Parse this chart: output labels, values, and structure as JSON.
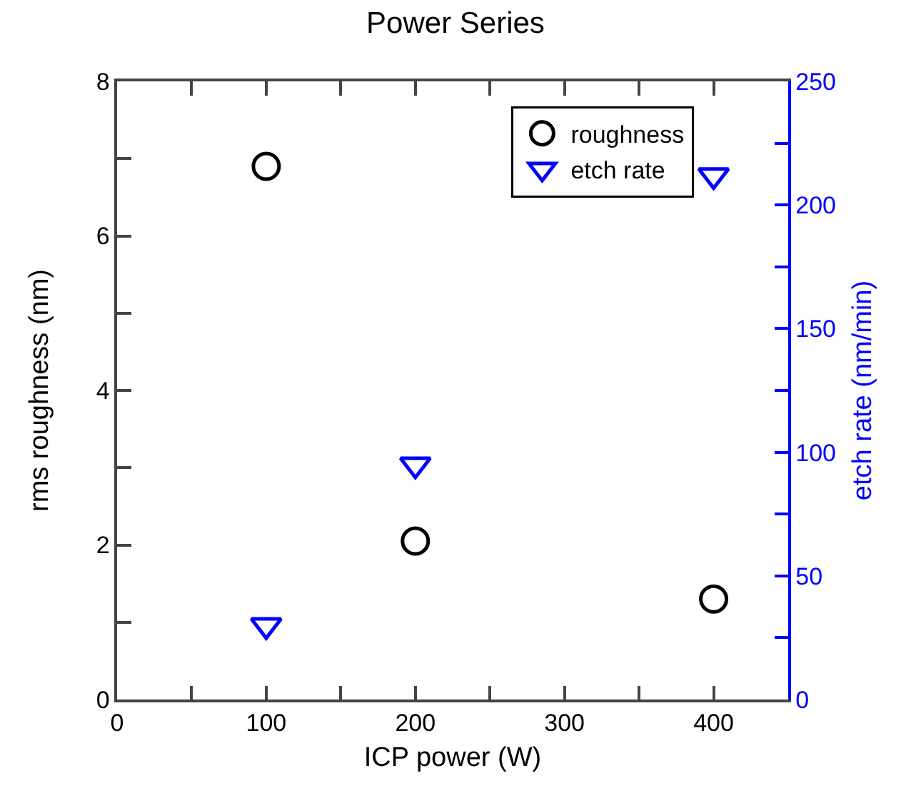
{
  "chart_data": {
    "type": "scatter",
    "title": "Power Series",
    "xlabel": "ICP power (W)",
    "ylabel": "rms roughness (nm)",
    "y2label": "etch rate (nm/min)",
    "x": [
      100,
      200,
      400
    ],
    "series": [
      {
        "name": "roughness",
        "color": "#000000",
        "marker": "circle",
        "values": [
          6.9,
          2.05,
          1.3
        ]
      },
      {
        "name": "etch rate",
        "color": "#0000ff",
        "marker": "triangle",
        "axis": "y2",
        "values": [
          30,
          95,
          212
        ]
      }
    ],
    "xlim": [
      0,
      450
    ],
    "xticks": [
      0,
      {
        "value": 50,
        "label": null
      },
      100,
      {
        "value": 150,
        "label": null
      },
      200,
      {
        "value": 250,
        "label": null
      },
      300,
      {
        "value": 350,
        "label": null
      },
      400
    ],
    "ylim": [
      0,
      8
    ],
    "yticks": [
      0,
      {
        "value": 1,
        "label": null
      },
      2,
      {
        "value": 3,
        "label": null
      },
      4,
      {
        "value": 5,
        "label": null
      },
      6,
      {
        "value": 7,
        "label": null
      },
      8
    ],
    "y2lim": [
      0,
      250
    ],
    "y2ticks": [
      0,
      {
        "value": 25,
        "label": null
      },
      50,
      {
        "value": 75,
        "label": null
      },
      100,
      {
        "value": 125,
        "label": null
      },
      150,
      {
        "value": 175,
        "label": null
      },
      200,
      {
        "value": 225,
        "label": null
      },
      250
    ],
    "grid": false,
    "legend": "top right"
  }
}
